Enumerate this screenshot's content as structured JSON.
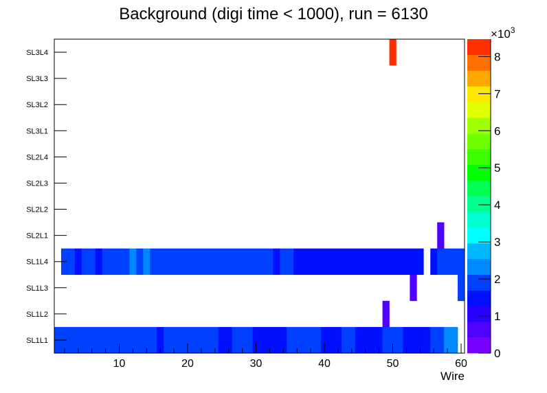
{
  "chart_data": {
    "type": "heatmap",
    "title": "Background (digi time < 1000), run = 6130",
    "xlabel": "Wire",
    "ylabel": "",
    "xlim": [
      0.5,
      60.5
    ],
    "x_ticks": [
      "10",
      "20",
      "30",
      "40",
      "50",
      "60"
    ],
    "y_categories": [
      "SL1L1",
      "SL1L2",
      "SL1L3",
      "SL1L4",
      "SL2L1",
      "SL2L2",
      "SL2L3",
      "SL2L4",
      "SL3L1",
      "SL3L2",
      "SL3L3",
      "SL3L4"
    ],
    "zlim": [
      0,
      8470
    ],
    "z_multiplier": "×10",
    "z_exponent": "3",
    "z_ticks": [
      "0",
      "1",
      "2",
      "3",
      "4",
      "5",
      "6",
      "7",
      "8"
    ],
    "palette": [
      "#7800ff",
      "#5000ff",
      "#2800ff",
      "#0010ff",
      "#0040ff",
      "#0088ff",
      "#00b8ff",
      "#00ffff",
      "#00ffd0",
      "#00ff90",
      "#00ff50",
      "#00ff00",
      "#40ff00",
      "#70ff00",
      "#a0ff00",
      "#e0ff00",
      "#ffe800",
      "#ffa800",
      "#ff7000",
      "#ff3000"
    ],
    "rows": {
      "SL1L1": [
        1900,
        1900,
        1900,
        1900,
        1900,
        1900,
        1900,
        1900,
        1900,
        1900,
        1900,
        1900,
        1900,
        1900,
        1900,
        1500,
        1900,
        1900,
        1900,
        1900,
        1900,
        1900,
        1900,
        1900,
        1500,
        1500,
        1900,
        1900,
        1900,
        1500,
        1500,
        1500,
        1500,
        1500,
        1900,
        1900,
        1900,
        1900,
        1900,
        1500,
        1500,
        1500,
        1900,
        1900,
        1500,
        1500,
        1500,
        1500,
        1900,
        1900,
        1900,
        1500,
        1500,
        1500,
        1500,
        1900,
        1900,
        2300,
        2300,
        0
      ],
      "SL1L2": {
        "49": 600
      },
      "SL1L3": {
        "53": 600,
        "60": 1900
      },
      "SL1L4": [
        0,
        1900,
        1900,
        1500,
        1900,
        1900,
        1500,
        1900,
        1900,
        1900,
        1900,
        2300,
        1900,
        2300,
        1900,
        1900,
        1900,
        1900,
        1900,
        1900,
        1900,
        1900,
        1900,
        1900,
        1900,
        1900,
        1900,
        1900,
        1900,
        1900,
        1900,
        1900,
        1500,
        1900,
        1900,
        1500,
        1500,
        1500,
        1500,
        1500,
        1500,
        1500,
        1500,
        1500,
        1500,
        1500,
        1500,
        1500,
        1500,
        1500,
        1500,
        1500,
        1500,
        1500,
        0,
        1500,
        1900,
        1900,
        1900,
        1900
      ],
      "SL2L1": {
        "57": 600
      },
      "SL2L2": {},
      "SL2L3": {},
      "SL2L4": {},
      "SL3L1": {},
      "SL3L2": {},
      "SL3L3": {},
      "SL3L4": {
        "50": 8300
      }
    }
  }
}
